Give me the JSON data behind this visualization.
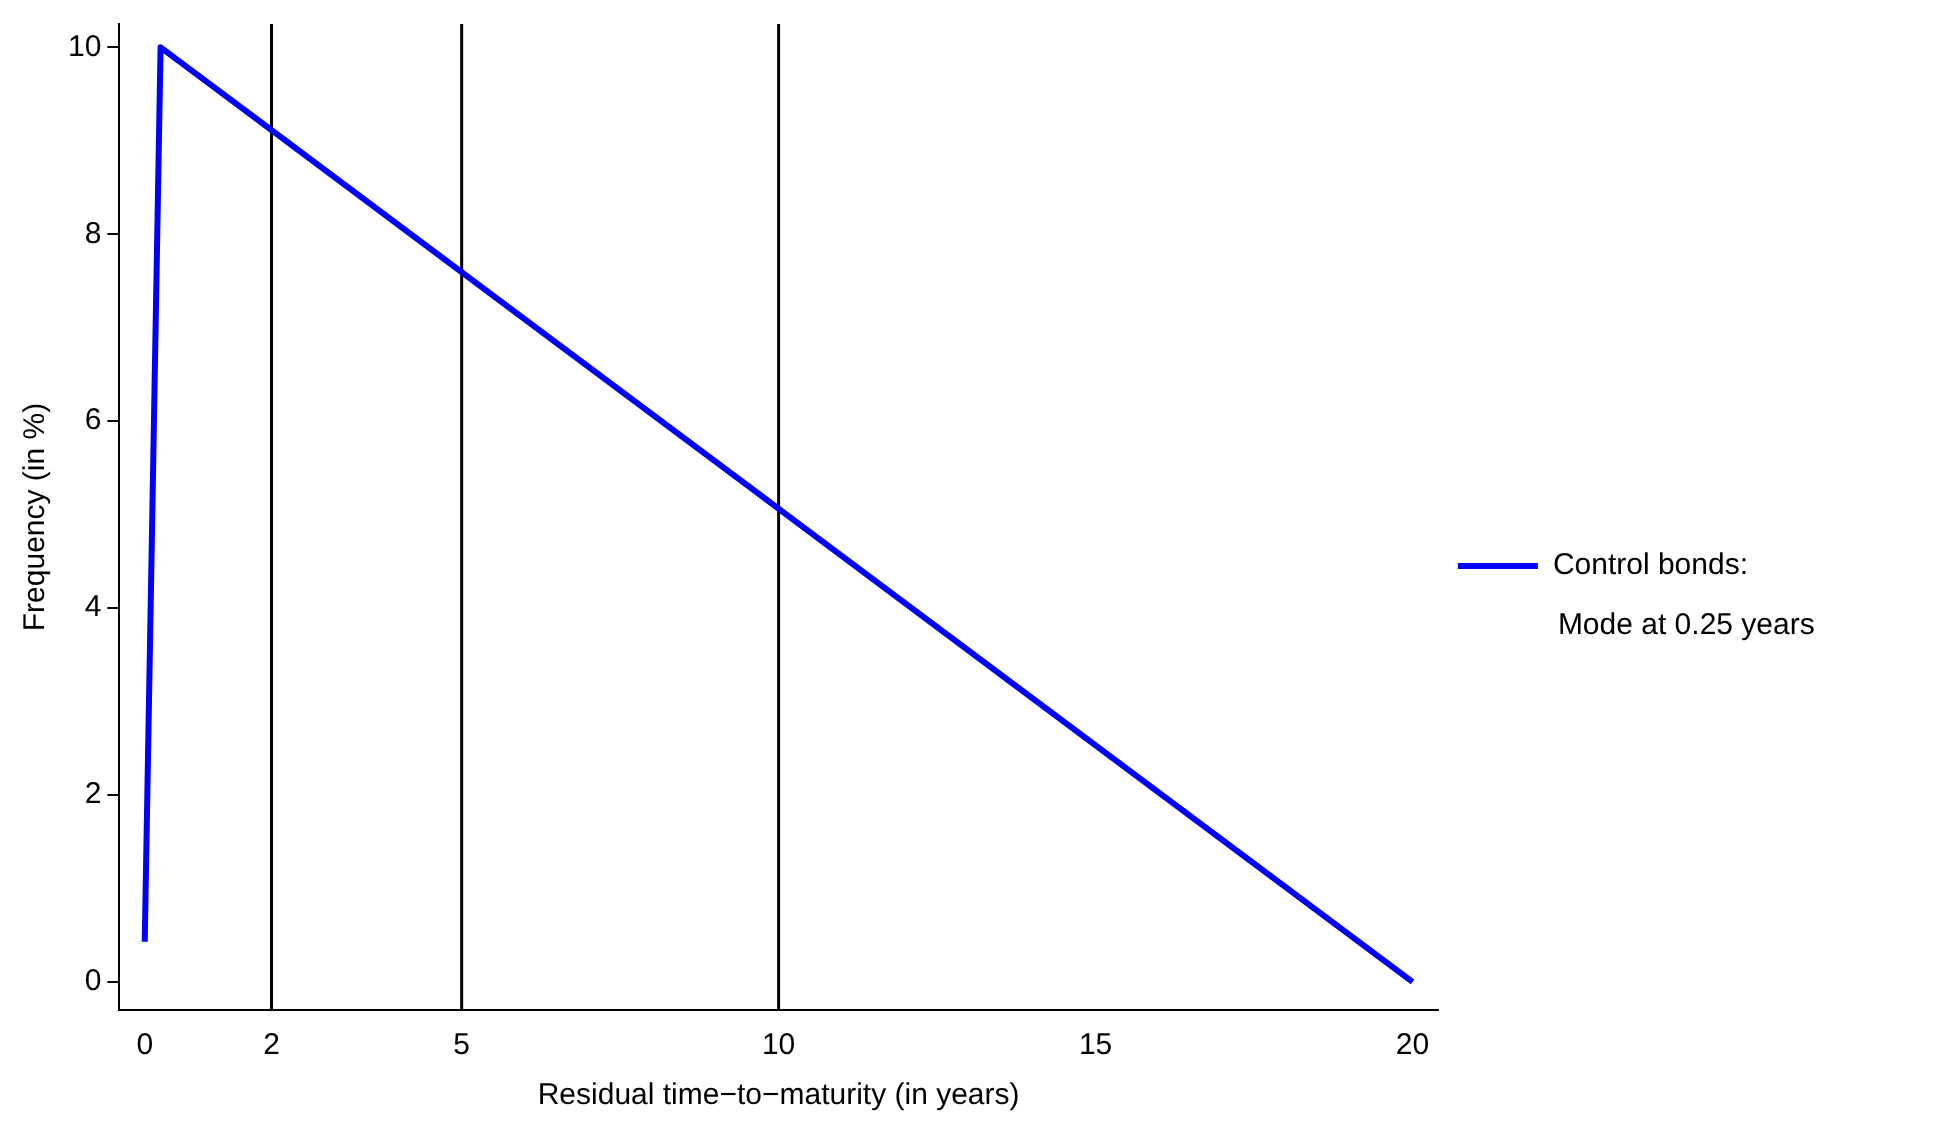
{
  "chart_data": {
    "type": "line",
    "xlabel": "Residual time−to−maturity (in years)",
    "ylabel": "Frequency (in %)",
    "series": [
      {
        "name": "Control bonds:",
        "color": "#0000ff",
        "x": [
          0,
          0.25,
          20
        ],
        "values": [
          0.43,
          10,
          0
        ]
      }
    ],
    "xlim": [
      -0.4,
      20.4
    ],
    "xticks": [
      0,
      2,
      5,
      10,
      15,
      20
    ],
    "ylim": [
      -0.3,
      10.25
    ],
    "yticks": [
      0,
      2,
      4,
      6,
      8,
      10
    ],
    "ref_lines": [
      {
        "axis": "x",
        "value": 2,
        "color": "#000000"
      },
      {
        "axis": "x",
        "value": 5,
        "color": "#000000"
      },
      {
        "axis": "x",
        "value": 10,
        "color": "#000000"
      }
    ],
    "annotations": [
      "Mode at 0.25 years"
    ],
    "grid": false,
    "legend": "right",
    "marker": "none",
    "line_style": "solid"
  }
}
